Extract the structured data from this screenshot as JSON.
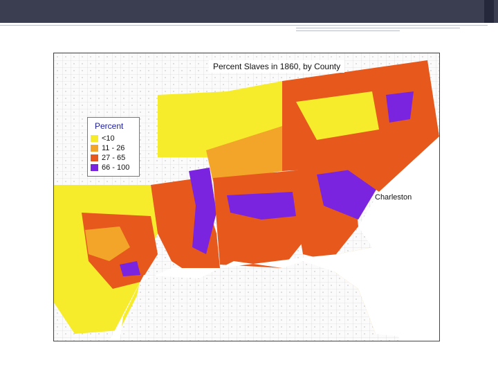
{
  "slide": {
    "decor_colors": {
      "topbar": "#3b3e50",
      "accent": "#b7bcc6"
    }
  },
  "map": {
    "title": "Percent Slaves in 1860, by County",
    "legend": {
      "title": "Percent",
      "items": [
        {
          "label": "<10",
          "color": "#f6ec2c"
        },
        {
          "label": "11 - 26",
          "color": "#f3a52a"
        },
        {
          "label": "27 - 65",
          "color": "#e6581c"
        },
        {
          "label": "66 - 100",
          "color": "#7b24e0"
        }
      ]
    },
    "city_label": "Charleston",
    "colors": {
      "background": "#fbfbfb",
      "county_pattern": "#cfcfcf",
      "water": "#ffffff"
    }
  }
}
